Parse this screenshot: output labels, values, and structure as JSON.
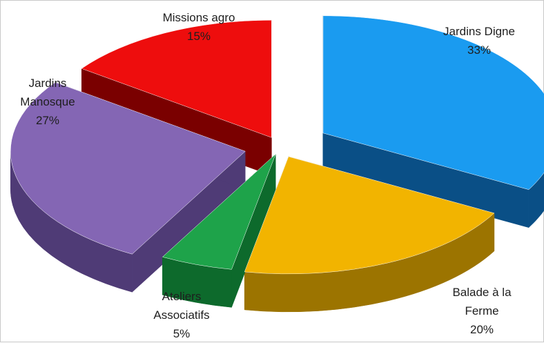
{
  "chart_data": {
    "type": "pie",
    "style": "3d-exploded",
    "slices": [
      {
        "label_lines": [
          "Jardins Digne"
        ],
        "pct_label": "33%",
        "value": 33,
        "color": "#1a9bf0",
        "side_color": "#0a4f86"
      },
      {
        "label_lines": [
          "Balade à la",
          "Ferme"
        ],
        "pct_label": "20%",
        "value": 20,
        "color": "#f2b400",
        "side_color": "#9c7400"
      },
      {
        "label_lines": [
          "Ateliers",
          "Associatifs"
        ],
        "pct_label": "5%",
        "value": 5,
        "color": "#1ea34a",
        "side_color": "#0d6a2c"
      },
      {
        "label_lines": [
          "Jardins",
          "Manosque"
        ],
        "pct_label": "27%",
        "value": 27,
        "color": "#8466b4",
        "side_color": "#4f3b76"
      },
      {
        "label_lines": [
          "Missions agro"
        ],
        "pct_label": "15%",
        "value": 15,
        "color": "#ee0d0d",
        "side_color": "#7a0000"
      }
    ]
  }
}
